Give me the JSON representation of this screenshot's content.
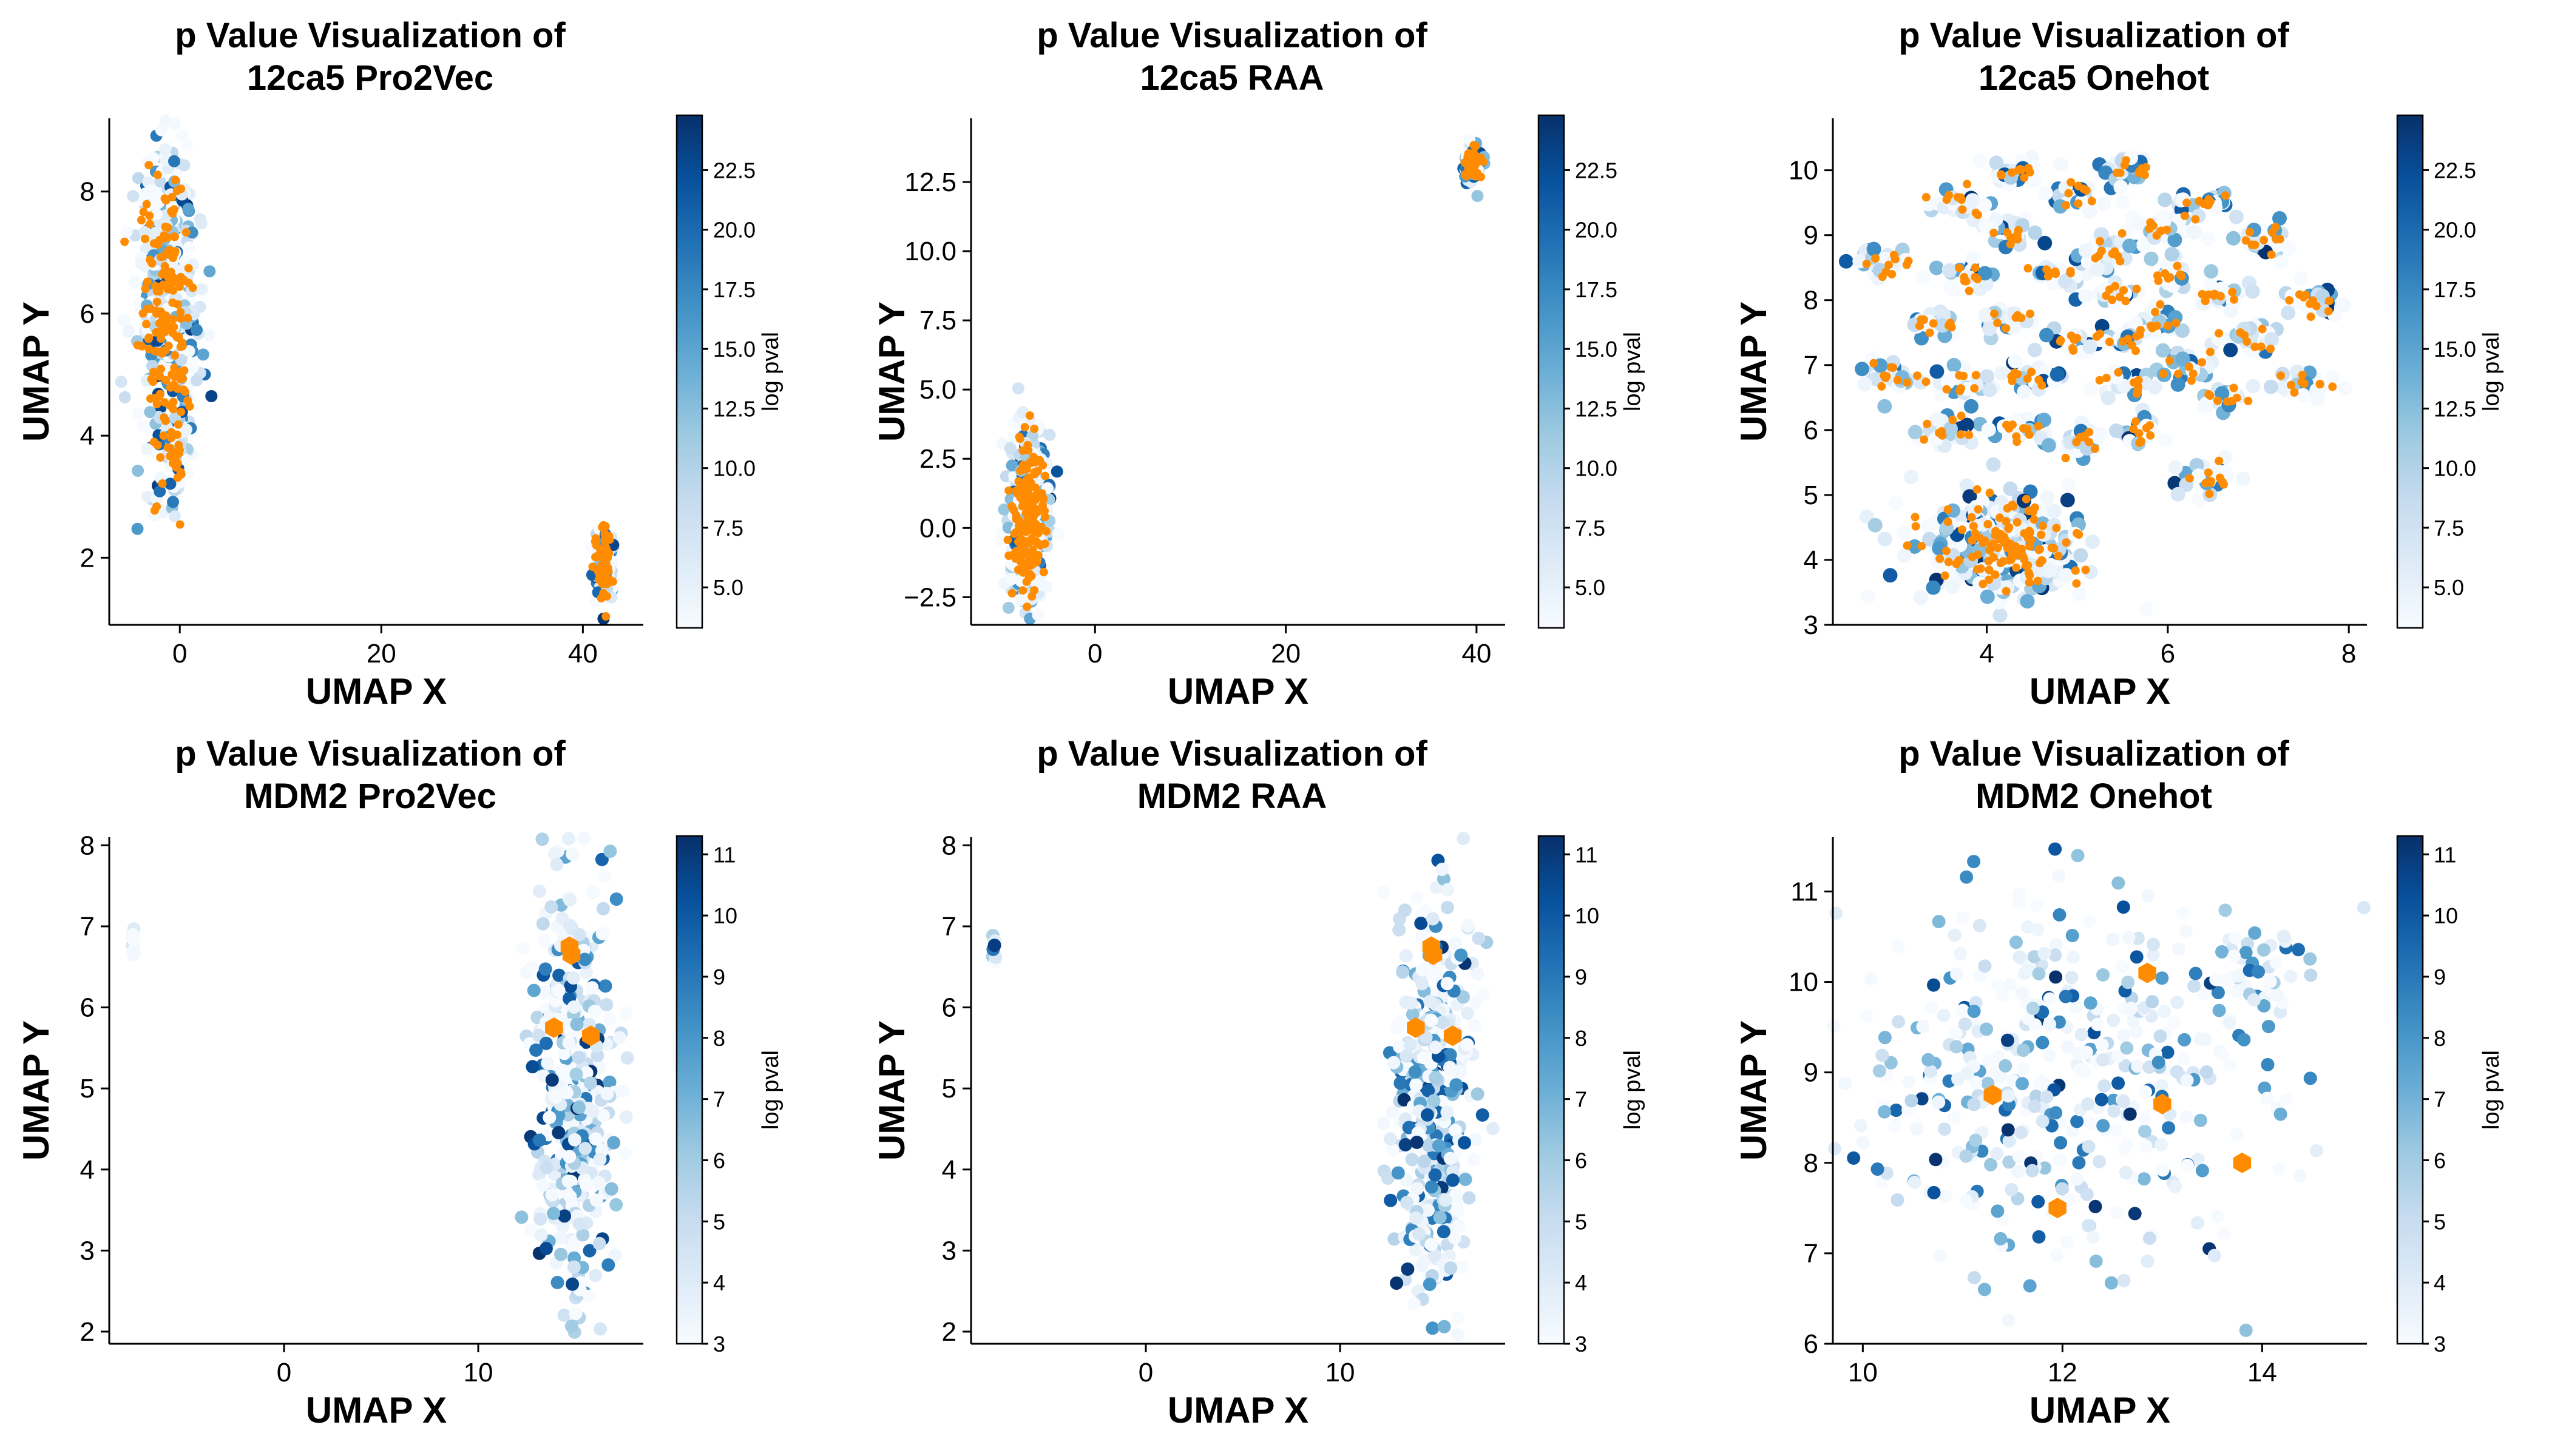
{
  "chart_data": [
    {
      "type": "scatter",
      "title_line1": "p Value Visualization of",
      "title_line2": "12ca5 Pro2Vec",
      "xlabel": "UMAP X",
      "ylabel": "UMAP Y",
      "xlim": [
        -7,
        46
      ],
      "ylim": [
        0.9,
        9.2
      ],
      "xticks": [
        0,
        20,
        40
      ],
      "yticks": [
        2,
        4,
        6,
        8
      ],
      "colorbar": {
        "label": "log pval",
        "colormap": "Blues",
        "range": [
          3.3,
          24.8
        ],
        "ticks": [
          5.0,
          7.5,
          10.0,
          12.5,
          15.0,
          17.5,
          20.0,
          22.5
        ]
      },
      "highlight_color": "#ff8c00",
      "point_style": "small",
      "clusters": [
        {
          "cx": -1.2,
          "cy": 6.2,
          "sx": 1.5,
          "sy": 1.35,
          "n": 420,
          "hl": 160
        },
        {
          "cx": -0.5,
          "cy": 3.8,
          "sx": 0.6,
          "sy": 0.3,
          "n": 50,
          "hl": 20
        },
        {
          "cx": 42.2,
          "cy": 1.9,
          "sx": 0.5,
          "sy": 0.3,
          "n": 110,
          "hl": 60
        }
      ],
      "highlighted_points": []
    },
    {
      "type": "scatter",
      "title_line1": "p Value Visualization of",
      "title_line2": "12ca5 RAA",
      "xlabel": "UMAP X",
      "ylabel": "UMAP Y",
      "xlim": [
        -13,
        43
      ],
      "ylim": [
        -3.5,
        14.8
      ],
      "xticks": [
        0,
        20,
        40
      ],
      "yticks": [
        -2.5,
        0.0,
        2.5,
        5.0,
        7.5,
        10.0,
        12.5
      ],
      "colorbar": {
        "label": "log pval",
        "colormap": "Blues",
        "range": [
          3.3,
          24.8
        ],
        "ticks": [
          5.0,
          7.5,
          10.0,
          12.5,
          15.0,
          17.5,
          20.0,
          22.5
        ]
      },
      "highlight_color": "#ff8c00",
      "point_style": "small",
      "clusters": [
        {
          "cx": -7.0,
          "cy": 0.3,
          "sx": 1.0,
          "sy": 1.5,
          "n": 360,
          "hl": 160
        },
        {
          "cx": 39.6,
          "cy": 13.2,
          "sx": 0.5,
          "sy": 0.35,
          "n": 70,
          "hl": 40
        }
      ],
      "highlighted_points": []
    },
    {
      "type": "scatter",
      "title_line1": "p Value Visualization of",
      "title_line2": "12ca5 Onehot",
      "xlabel": "UMAP X",
      "ylabel": "UMAP Y",
      "xlim": [
        2.3,
        8.2
      ],
      "ylim": [
        3.0,
        10.8
      ],
      "xticks": [
        4,
        6,
        8
      ],
      "yticks": [
        3,
        4,
        5,
        6,
        7,
        8,
        9,
        10
      ],
      "colorbar": {
        "label": "log pval",
        "colormap": "Blues",
        "range": [
          3.3,
          24.8
        ],
        "ticks": [
          5.0,
          7.5,
          10.0,
          12.5,
          15.0,
          17.5,
          20.0,
          22.5
        ]
      },
      "highlight_color": "#ff8c00",
      "point_style": "medium",
      "clusters": [
        {
          "cx": 4.15,
          "cy": 4.2,
          "sx": 0.5,
          "sy": 0.4,
          "n": 260,
          "hl": 110
        },
        {
          "cx": 2.9,
          "cy": 8.55,
          "sx": 0.18,
          "sy": 0.12,
          "n": 28,
          "hl": 10
        },
        {
          "cx": 3.65,
          "cy": 9.5,
          "sx": 0.16,
          "sy": 0.12,
          "n": 24,
          "hl": 9
        },
        {
          "cx": 4.3,
          "cy": 10.0,
          "sx": 0.18,
          "sy": 0.13,
          "n": 26,
          "hl": 10
        },
        {
          "cx": 5.0,
          "cy": 9.6,
          "sx": 0.15,
          "sy": 0.12,
          "n": 22,
          "hl": 8
        },
        {
          "cx": 5.55,
          "cy": 10.0,
          "sx": 0.16,
          "sy": 0.12,
          "n": 24,
          "hl": 9
        },
        {
          "cx": 6.4,
          "cy": 9.5,
          "sx": 0.2,
          "sy": 0.13,
          "n": 26,
          "hl": 10
        },
        {
          "cx": 7.1,
          "cy": 8.9,
          "sx": 0.2,
          "sy": 0.12,
          "n": 26,
          "hl": 10
        },
        {
          "cx": 7.6,
          "cy": 8.0,
          "sx": 0.2,
          "sy": 0.13,
          "n": 26,
          "hl": 10
        },
        {
          "cx": 3.4,
          "cy": 7.6,
          "sx": 0.16,
          "sy": 0.12,
          "n": 22,
          "hl": 8
        },
        {
          "cx": 3.8,
          "cy": 8.4,
          "sx": 0.16,
          "sy": 0.12,
          "n": 22,
          "hl": 8
        },
        {
          "cx": 4.25,
          "cy": 9.05,
          "sx": 0.16,
          "sy": 0.12,
          "n": 22,
          "hl": 8
        },
        {
          "cx": 4.8,
          "cy": 8.4,
          "sx": 0.15,
          "sy": 0.12,
          "n": 22,
          "hl": 8
        },
        {
          "cx": 4.25,
          "cy": 7.7,
          "sx": 0.16,
          "sy": 0.12,
          "n": 22,
          "hl": 8
        },
        {
          "cx": 5.3,
          "cy": 8.75,
          "sx": 0.15,
          "sy": 0.12,
          "n": 22,
          "hl": 8
        },
        {
          "cx": 5.85,
          "cy": 9.1,
          "sx": 0.16,
          "sy": 0.12,
          "n": 22,
          "hl": 8
        },
        {
          "cx": 6.0,
          "cy": 8.4,
          "sx": 0.15,
          "sy": 0.12,
          "n": 22,
          "hl": 8
        },
        {
          "cx": 5.4,
          "cy": 8.1,
          "sx": 0.15,
          "sy": 0.11,
          "n": 20,
          "hl": 8
        },
        {
          "cx": 6.6,
          "cy": 8.1,
          "sx": 0.16,
          "sy": 0.12,
          "n": 22,
          "hl": 8
        },
        {
          "cx": 5.9,
          "cy": 7.65,
          "sx": 0.15,
          "sy": 0.11,
          "n": 20,
          "hl": 8
        },
        {
          "cx": 2.95,
          "cy": 6.85,
          "sx": 0.2,
          "sy": 0.13,
          "n": 26,
          "hl": 10
        },
        {
          "cx": 3.7,
          "cy": 6.7,
          "sx": 0.16,
          "sy": 0.12,
          "n": 22,
          "hl": 8
        },
        {
          "cx": 4.5,
          "cy": 6.8,
          "sx": 0.18,
          "sy": 0.13,
          "n": 24,
          "hl": 9
        },
        {
          "cx": 4.95,
          "cy": 7.35,
          "sx": 0.15,
          "sy": 0.11,
          "n": 20,
          "hl": 8
        },
        {
          "cx": 5.5,
          "cy": 6.75,
          "sx": 0.16,
          "sy": 0.12,
          "n": 22,
          "hl": 8
        },
        {
          "cx": 5.5,
          "cy": 7.4,
          "sx": 0.15,
          "sy": 0.11,
          "n": 20,
          "hl": 8
        },
        {
          "cx": 6.2,
          "cy": 7.0,
          "sx": 0.16,
          "sy": 0.12,
          "n": 22,
          "hl": 8
        },
        {
          "cx": 6.9,
          "cy": 7.4,
          "sx": 0.18,
          "sy": 0.12,
          "n": 22,
          "hl": 8
        },
        {
          "cx": 6.6,
          "cy": 6.5,
          "sx": 0.17,
          "sy": 0.12,
          "n": 22,
          "hl": 8
        },
        {
          "cx": 7.5,
          "cy": 6.7,
          "sx": 0.18,
          "sy": 0.12,
          "n": 24,
          "hl": 9
        },
        {
          "cx": 3.6,
          "cy": 6.0,
          "sx": 0.18,
          "sy": 0.12,
          "n": 24,
          "hl": 9
        },
        {
          "cx": 4.4,
          "cy": 6.0,
          "sx": 0.18,
          "sy": 0.12,
          "n": 24,
          "hl": 9
        },
        {
          "cx": 5.0,
          "cy": 5.85,
          "sx": 0.16,
          "sy": 0.12,
          "n": 22,
          "hl": 8
        },
        {
          "cx": 5.7,
          "cy": 6.0,
          "sx": 0.16,
          "sy": 0.12,
          "n": 22,
          "hl": 8
        },
        {
          "cx": 6.4,
          "cy": 5.3,
          "sx": 0.2,
          "sy": 0.14,
          "n": 28,
          "hl": 10
        }
      ],
      "highlighted_points": []
    },
    {
      "type": "scatter",
      "title_line1": "p Value Visualization of",
      "title_line2": "MDM2 Pro2Vec",
      "xlabel": "UMAP X",
      "ylabel": "UMAP Y",
      "xlim": [
        -9,
        18.5
      ],
      "ylim": [
        1.85,
        8.1
      ],
      "xticks": [
        0,
        10
      ],
      "yticks": [
        2,
        3,
        4,
        5,
        6,
        7,
        8
      ],
      "colorbar": {
        "label": "log pval",
        "colormap": "Blues",
        "range": [
          3,
          11.3
        ],
        "ticks": [
          3,
          4,
          5,
          6,
          7,
          8,
          9,
          10,
          11
        ]
      },
      "highlight_color": "#ff8c00",
      "point_style": "large",
      "clusters": [
        {
          "cx": 14.9,
          "cy": 4.9,
          "sx": 1.0,
          "sy": 1.3,
          "n": 420,
          "hl": 0
        },
        {
          "cx": -7.8,
          "cy": 6.75,
          "sx": 0.08,
          "sy": 0.1,
          "n": 8,
          "hl": 0
        }
      ],
      "highlighted_points": [
        {
          "x": 14.7,
          "y": 6.75
        },
        {
          "x": 14.8,
          "y": 6.65
        },
        {
          "x": 13.9,
          "y": 5.75
        },
        {
          "x": 15.8,
          "y": 5.65
        }
      ]
    },
    {
      "type": "scatter",
      "title_line1": "p Value Visualization of",
      "title_line2": "MDM2 RAA",
      "xlabel": "UMAP X",
      "ylabel": "UMAP Y",
      "xlim": [
        -9,
        18.5
      ],
      "ylim": [
        1.85,
        8.1
      ],
      "xticks": [
        0,
        10
      ],
      "yticks": [
        2,
        3,
        4,
        5,
        6,
        7,
        8
      ],
      "colorbar": {
        "label": "log pval",
        "colormap": "Blues",
        "range": [
          3,
          11.3
        ],
        "ticks": [
          3,
          4,
          5,
          6,
          7,
          8,
          9,
          10,
          11
        ]
      },
      "highlight_color": "#ff8c00",
      "point_style": "large",
      "clusters": [
        {
          "cx": 14.9,
          "cy": 4.9,
          "sx": 1.0,
          "sy": 1.3,
          "n": 420,
          "hl": 0
        },
        {
          "cx": -7.8,
          "cy": 6.75,
          "sx": 0.08,
          "sy": 0.1,
          "n": 8,
          "hl": 0
        }
      ],
      "highlighted_points": [
        {
          "x": 14.7,
          "y": 6.75
        },
        {
          "x": 14.8,
          "y": 6.65
        },
        {
          "x": 13.9,
          "y": 5.75
        },
        {
          "x": 15.8,
          "y": 5.65
        }
      ]
    },
    {
      "type": "scatter",
      "title_line1": "p Value Visualization of",
      "title_line2": "MDM2 Onehot",
      "xlabel": "UMAP X",
      "ylabel": "UMAP Y",
      "xlim": [
        9.7,
        15.05
      ],
      "ylim": [
        6.0,
        11.6
      ],
      "xticks": [
        10,
        12,
        14
      ],
      "yticks": [
        6,
        7,
        8,
        9,
        10,
        11
      ],
      "colorbar": {
        "label": "log pval",
        "colormap": "Blues",
        "range": [
          3,
          11.3
        ],
        "ticks": [
          3,
          4,
          5,
          6,
          7,
          8,
          9,
          10,
          11
        ]
      },
      "highlight_color": "#ff8c00",
      "point_style": "large",
      "clusters": [
        {
          "cx": 12.0,
          "cy": 9.0,
          "sx": 1.1,
          "sy": 1.05,
          "n": 420,
          "hl": 0
        },
        {
          "cx": 13.9,
          "cy": 10.1,
          "sx": 0.35,
          "sy": 0.22,
          "n": 45,
          "hl": 0
        }
      ],
      "highlighted_points": [
        {
          "x": 11.3,
          "y": 8.75
        },
        {
          "x": 12.85,
          "y": 10.1
        },
        {
          "x": 13.0,
          "y": 8.65
        },
        {
          "x": 13.8,
          "y": 8.0
        },
        {
          "x": 11.95,
          "y": 7.5
        }
      ]
    }
  ]
}
